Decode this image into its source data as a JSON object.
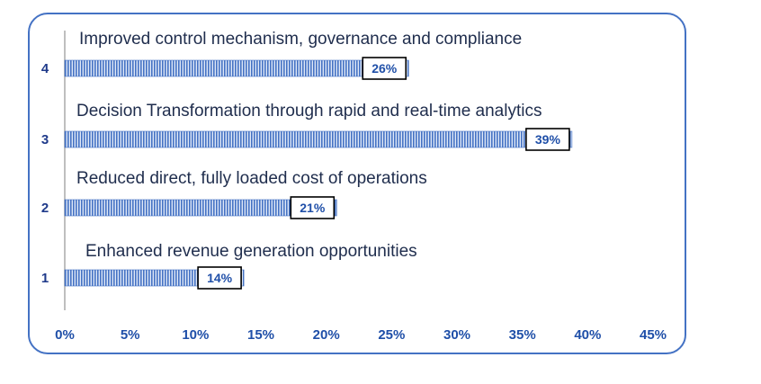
{
  "chart_data": {
    "type": "bar",
    "orientation": "horizontal",
    "categories": [
      "1",
      "2",
      "3",
      "4"
    ],
    "descriptions": [
      "Enhanced revenue generation opportunities",
      "Reduced direct, fully loaded cost of operations",
      "Decision Transformation through rapid and real-time analytics",
      "Improved control mechanism, governance and compliance"
    ],
    "values": [
      13.7,
      20.8,
      38.8,
      26.3
    ],
    "value_labels": [
      "14%",
      "21%",
      "39%",
      "26%"
    ],
    "xlim": [
      0,
      45
    ],
    "xticks": [
      "0%",
      "5%",
      "10%",
      "15%",
      "20%",
      "25%",
      "30%",
      "35%",
      "40%",
      "45%"
    ],
    "bar_color": "#4472c4",
    "frame_color": "#4472c4",
    "grid": false
  }
}
